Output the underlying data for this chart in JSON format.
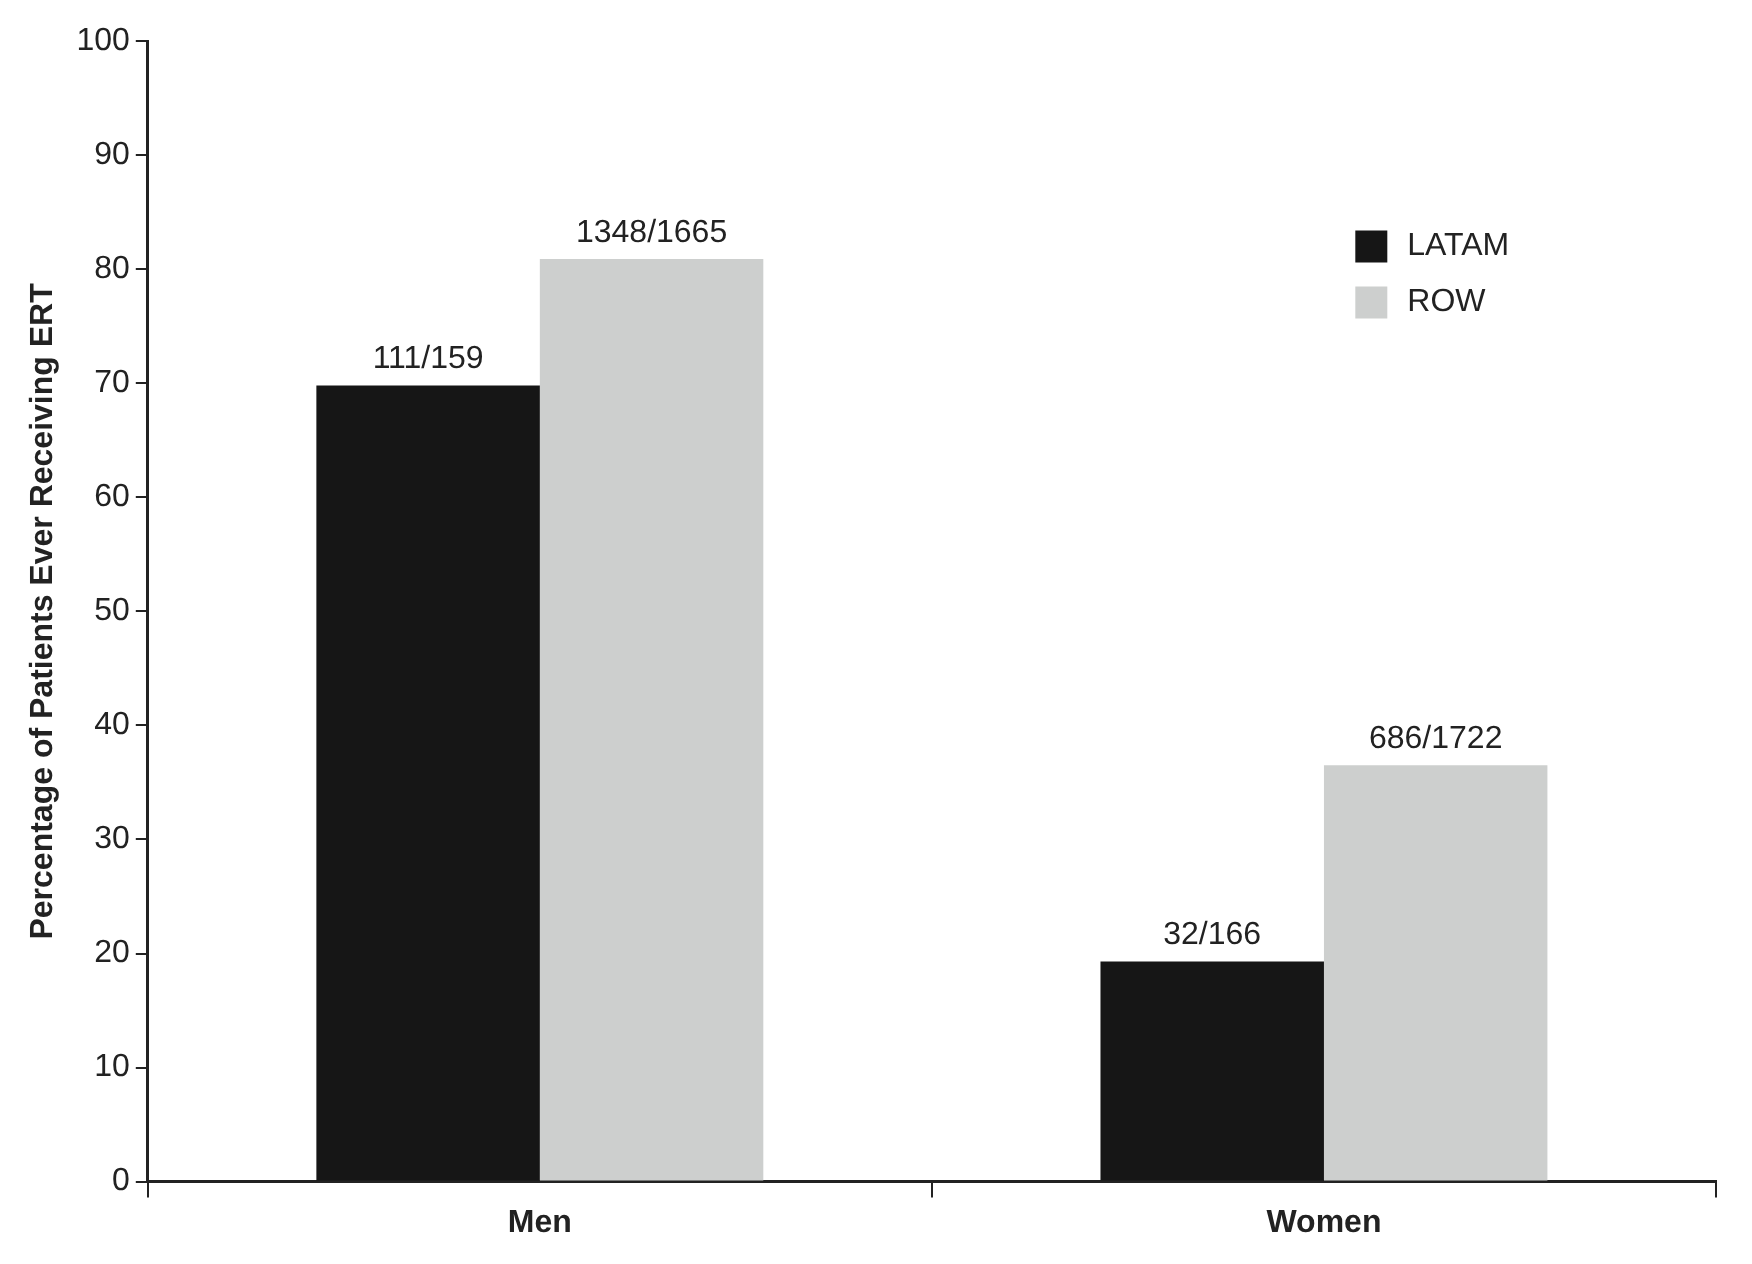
{
  "chart_data": {
    "type": "bar",
    "ylabel": "Percentage of Patients Ever Receiving ERT",
    "categories": [
      "Men",
      "Women"
    ],
    "series": [
      {
        "name": "LATAM",
        "color": "#161616",
        "values": [
          69.8,
          19.3
        ],
        "value_labels": [
          "111/159",
          "32/166"
        ]
      },
      {
        "name": "ROW",
        "color": "#cdcfce",
        "values": [
          80.9,
          36.5
        ],
        "value_labels": [
          "1348/1665",
          "686/1722"
        ]
      }
    ],
    "ylim": [
      0,
      100
    ],
    "yticks": [
      0,
      10,
      20,
      30,
      40,
      50,
      60,
      70,
      80,
      90,
      100
    ],
    "grid": false,
    "legend": "top right"
  }
}
